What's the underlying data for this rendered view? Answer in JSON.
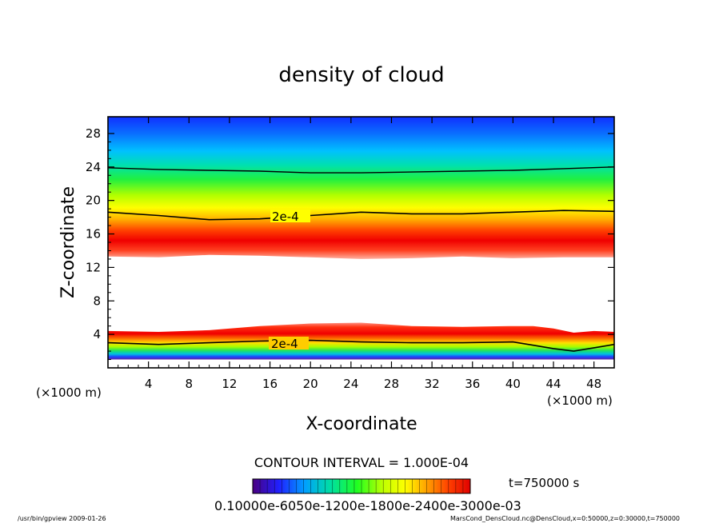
{
  "chart_data": {
    "type": "heatmap",
    "title": "density of cloud",
    "xlabel": "X-coordinate",
    "ylabel": "Z-coordinate",
    "x_unit_left": "(×1000 m)",
    "x_unit_right": "(×1000 m)",
    "xlim": [
      0,
      50
    ],
    "ylim": [
      0,
      30
    ],
    "x_ticks": [
      "4",
      "8",
      "12",
      "16",
      "20",
      "24",
      "28",
      "32",
      "36",
      "40",
      "44",
      "48"
    ],
    "y_ticks": [
      "4",
      "8",
      "12",
      "16",
      "20",
      "24",
      "28"
    ],
    "upper_layer": {
      "z_bottom": [
        13.3,
        13.2,
        13.5,
        13.4,
        13.2,
        13.0,
        13.1,
        13.3,
        13.1,
        13.2,
        13.2
      ],
      "z_peak": [
        15.5,
        15.5,
        15.4,
        15.3,
        15.2,
        15.2,
        15.3,
        15.4,
        15.5,
        15.5,
        15.6
      ],
      "contour_2e-4": [
        18.6,
        18.2,
        17.7,
        17.8,
        18.2,
        18.6,
        18.4,
        18.4,
        18.6,
        18.8,
        18.7
      ],
      "contour_upper": [
        23.9,
        23.7,
        23.6,
        23.5,
        23.3,
        23.3,
        23.4,
        23.5,
        23.6,
        23.8,
        24.0
      ],
      "x": [
        0,
        5,
        10,
        15,
        20,
        25,
        30,
        35,
        40,
        45,
        50
      ]
    },
    "lower_layer": {
      "x": [
        0,
        5,
        10,
        15,
        20,
        25,
        30,
        35,
        40,
        42,
        44,
        46,
        48,
        50
      ],
      "z_top": [
        4.4,
        4.3,
        4.5,
        5.0,
        5.3,
        5.4,
        5.0,
        4.9,
        5.0,
        5.0,
        4.7,
        4.2,
        4.4,
        4.3
      ],
      "contour_2e-4": [
        3.0,
        2.8,
        3.0,
        3.2,
        3.3,
        3.1,
        3.0,
        3.0,
        3.1,
        2.7,
        2.3,
        2.0,
        2.4,
        2.8
      ],
      "z_bottom": [
        1.0,
        1.0,
        1.0,
        1.0,
        1.0,
        1.0,
        1.0,
        1.0,
        1.0,
        1.0,
        1.0,
        1.0,
        1.0,
        1.0
      ]
    },
    "contour_labels": [
      "2e-4",
      "2e-4"
    ],
    "colorbar": {
      "min_label": "0.1000",
      "tick_labels": [
        "e-6",
        "0.",
        "e-1",
        "00",
        "e-1",
        "8",
        "00",
        "e-2",
        "4",
        "00",
        "e-3",
        "0",
        "00",
        "e-",
        "3"
      ],
      "overprinted_text": "0.10000e-6050e-1200e-1800e-2400e-3000e-03",
      "cmap": [
        "#4a0080",
        "#2020ff",
        "#00a0ff",
        "#00e0a0",
        "#20ff20",
        "#c0ff00",
        "#ffff00",
        "#ffa000",
        "#ff4000",
        "#e00000"
      ]
    },
    "contour_interval": "CONTOUR INTERVAL = 1.000E-04",
    "time_label": "t=750000 s"
  },
  "footer": {
    "left": "/usr/bin/gpview   2009-01-26",
    "right": "MarsCond_DensCloud.nc@DensCloud,x=0:50000,z=0:30000,t=750000"
  },
  "colors": {
    "background": "#ffffff",
    "frame": "#000000",
    "contour": "#000000"
  }
}
